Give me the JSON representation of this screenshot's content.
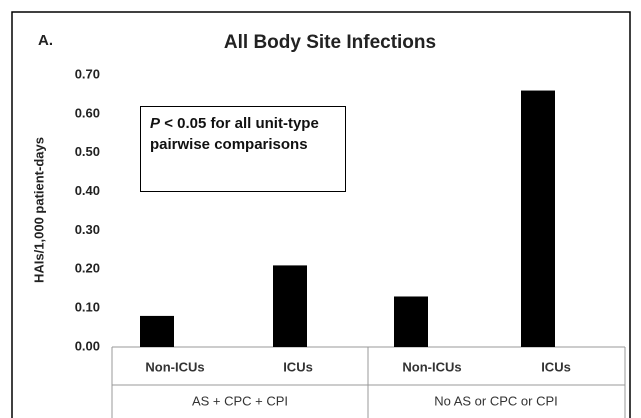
{
  "chart_data": {
    "type": "bar",
    "panel_label": "A.",
    "title": "All Body Site Infections",
    "y_label": "HAIs/1,000 patient-days",
    "categories": [
      "Non-ICUs",
      "ICUs",
      "Non-ICUs",
      "ICUs"
    ],
    "groups": [
      "AS + CPC + CPI",
      "No AS or CPC or CPI"
    ],
    "values": [
      0.08,
      0.21,
      0.13,
      0.66
    ],
    "color": "#000000",
    "ylim": [
      0,
      0.7
    ],
    "yticks": [
      {
        "value": 0,
        "label": "0.00"
      },
      {
        "value": 0.1,
        "label": "0.10"
      },
      {
        "value": 0.2,
        "label": "0.20"
      },
      {
        "value": 0.3,
        "label": "0.30"
      },
      {
        "value": 0.4,
        "label": "0.40"
      },
      {
        "value": 0.5,
        "label": "0.50"
      },
      {
        "value": 0.6,
        "label": "0.60"
      },
      {
        "value": 0.7,
        "label": "0.70"
      }
    ],
    "grid": false,
    "annotation": {
      "italic": "P",
      "text": "< 0.05 for all unit-type pairwise comparisons"
    }
  }
}
